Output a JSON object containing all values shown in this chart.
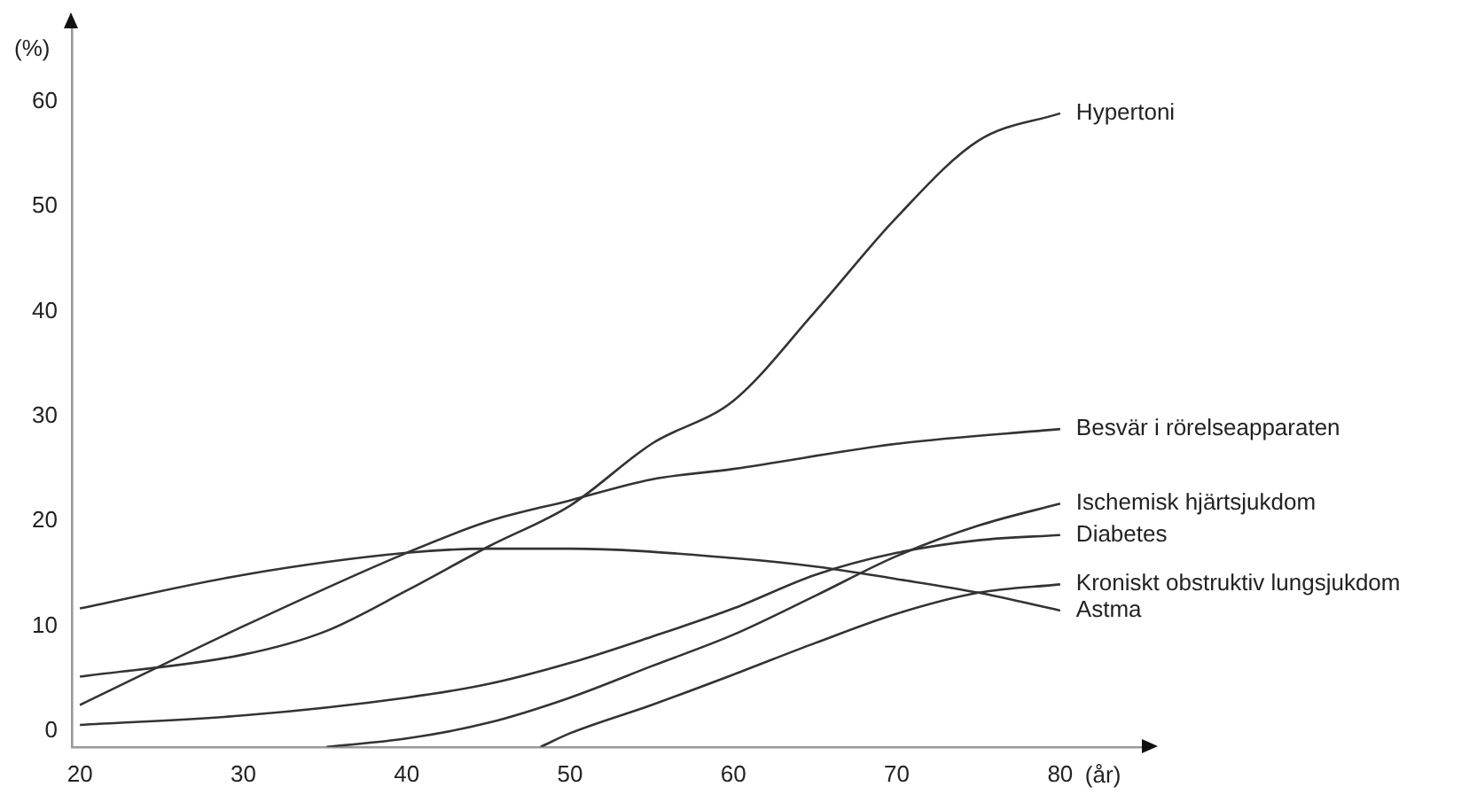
{
  "chart_data": {
    "type": "line",
    "ylabel": "(%)",
    "xlabel": "(år)",
    "xlim": [
      19.5,
      85
    ],
    "ylim": [
      -1.5,
      67
    ],
    "xticks": [
      20,
      30,
      40,
      50,
      60,
      70,
      80
    ],
    "yticks": [
      0,
      10,
      20,
      30,
      40,
      50,
      60
    ],
    "grid": false,
    "legend": false,
    "marker": "none",
    "line_style": "solid",
    "series": [
      {
        "name": "Hypertoni",
        "color": "#333333",
        "x": [
          20,
          30,
          35,
          40,
          45,
          50,
          55,
          60,
          65,
          70,
          75,
          80
        ],
        "values": [
          5.2,
          7.3,
          9.5,
          13.4,
          17.6,
          21.5,
          27.4,
          31.5,
          40,
          49,
          56.3,
          58.9
        ]
      },
      {
        "name": "Besvär i rörelseapparaten",
        "color": "#333333",
        "x": [
          20,
          30,
          40,
          45,
          50,
          55,
          60,
          70,
          80
        ],
        "values": [
          2.5,
          10,
          17,
          20,
          22,
          24,
          25,
          27.4,
          28.8
        ]
      },
      {
        "name": "Ischemisk hjärtsjukdom",
        "color": "#333333",
        "x": [
          35.1,
          40,
          45,
          50,
          55,
          60,
          65,
          70,
          75,
          80
        ],
        "values": [
          -1.5,
          -0.7,
          0.8,
          3.2,
          6.2,
          9.2,
          12.9,
          16.7,
          19.6,
          21.7
        ]
      },
      {
        "name": "Diabetes",
        "color": "#333333",
        "x": [
          20,
          30,
          40,
          45,
          50,
          55,
          60,
          65,
          70,
          75,
          80
        ],
        "values": [
          0.6,
          1.5,
          3.2,
          4.5,
          6.5,
          9,
          11.7,
          14.9,
          17,
          18.2,
          18.7
        ]
      },
      {
        "name": "Kroniskt obstruktiv lungsjukdom",
        "color": "#333333",
        "x": [
          48.2,
          50,
          55,
          60,
          65,
          70,
          75,
          80
        ],
        "values": [
          -1.5,
          -0.2,
          2.5,
          5.4,
          8.4,
          11.2,
          13.2,
          14
        ]
      },
      {
        "name": "Astma",
        "color": "#333333",
        "x": [
          20,
          30,
          40,
          45,
          50,
          60,
          65,
          70,
          75,
          80
        ],
        "values": [
          11.7,
          14.9,
          17,
          17.4,
          17.4,
          16.5,
          15.7,
          14.5,
          13.2,
          11.5
        ]
      }
    ]
  }
}
